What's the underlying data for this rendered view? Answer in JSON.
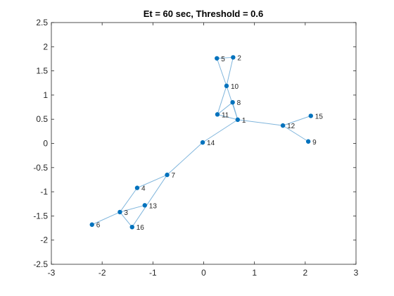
{
  "chart_data": {
    "type": "graph",
    "title": "Et = 60 sec, Threshold = 0.6",
    "xlim": [
      -3,
      3
    ],
    "ylim": [
      -2.5,
      2.5
    ],
    "xticks": [
      -3,
      -2,
      -1,
      0,
      1,
      2,
      3
    ],
    "yticks": [
      -2.5,
      -2,
      -1.5,
      -1,
      -0.5,
      0,
      0.5,
      1,
      1.5,
      2,
      2.5
    ],
    "xtick_labels": [
      "-3",
      "-2",
      "-1",
      "0",
      "1",
      "2",
      "3"
    ],
    "ytick_labels": [
      "-2.5",
      "-2",
      "-1.5",
      "-1",
      "-0.5",
      "0",
      "0.5",
      "1",
      "1.5",
      "2",
      "2.5"
    ],
    "grid": false,
    "node_color": "#0072bd",
    "edge_color": "#7fb5dc",
    "nodes": [
      {
        "id": "1",
        "x": 0.67,
        "y": 0.49
      },
      {
        "id": "2",
        "x": 0.58,
        "y": 1.78
      },
      {
        "id": "3",
        "x": -1.65,
        "y": -1.42
      },
      {
        "id": "4",
        "x": -1.31,
        "y": -0.92
      },
      {
        "id": "5",
        "x": 0.26,
        "y": 1.76
      },
      {
        "id": "6",
        "x": -2.2,
        "y": -1.68
      },
      {
        "id": "7",
        "x": -0.72,
        "y": -0.65
      },
      {
        "id": "8",
        "x": 0.57,
        "y": 0.85
      },
      {
        "id": "9",
        "x": 2.06,
        "y": 0.04
      },
      {
        "id": "10",
        "x": 0.45,
        "y": 1.19
      },
      {
        "id": "11",
        "x": 0.27,
        "y": 0.6
      },
      {
        "id": "12",
        "x": 1.56,
        "y": 0.37
      },
      {
        "id": "13",
        "x": -1.16,
        "y": -1.28
      },
      {
        "id": "14",
        "x": -0.02,
        "y": 0.02
      },
      {
        "id": "15",
        "x": 2.11,
        "y": 0.57
      },
      {
        "id": "16",
        "x": -1.41,
        "y": -1.73
      }
    ],
    "edges": [
      [
        "5",
        "2"
      ],
      [
        "5",
        "10"
      ],
      [
        "2",
        "10"
      ],
      [
        "10",
        "11"
      ],
      [
        "10",
        "1"
      ],
      [
        "11",
        "8"
      ],
      [
        "8",
        "1"
      ],
      [
        "11",
        "1"
      ],
      [
        "1",
        "14"
      ],
      [
        "1",
        "12"
      ],
      [
        "12",
        "15"
      ],
      [
        "12",
        "9"
      ],
      [
        "14",
        "7"
      ],
      [
        "7",
        "4"
      ],
      [
        "7",
        "16"
      ],
      [
        "4",
        "3"
      ],
      [
        "3",
        "6"
      ],
      [
        "3",
        "13"
      ],
      [
        "3",
        "16"
      ]
    ]
  }
}
